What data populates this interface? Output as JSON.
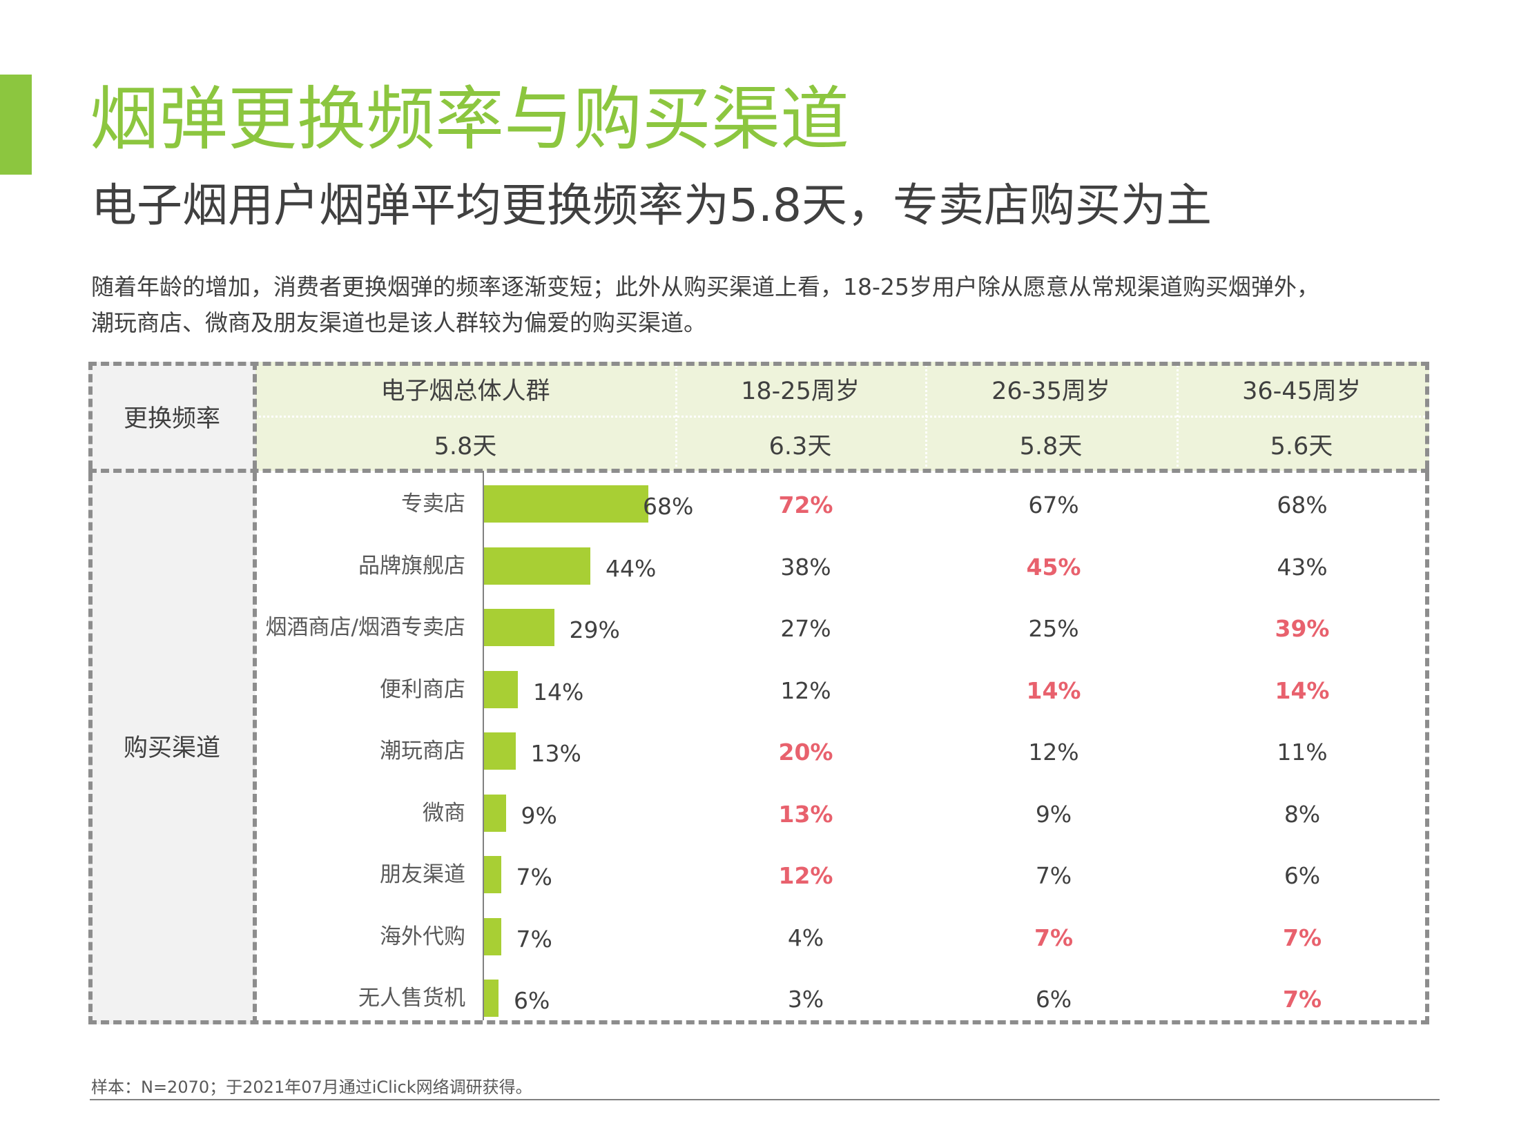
{
  "title": "烟弹更换频率与购买渠道",
  "subtitle": "电子烟用户烟弹平均更换频率为5.8天，专卖店购买为主",
  "description": [
    "随着年龄的增加，消费者更换烟弹的频率逐渐变短；此外从购买渠道上看，18-25岁用户除从愿意从常规渠道购买烟弹外，",
    "潮玩商店、微商及朋友渠道也是该人群较为偏爱的购买渠道。"
  ],
  "table": {
    "frequency_label": "更换频率",
    "channel_label": "购买渠道",
    "columns": [
      "电子烟总体人群",
      "18-25周岁",
      "26-35周岁",
      "36-45周岁"
    ],
    "frequencies": [
      "5.8天",
      "6.3天",
      "5.8天",
      "5.6天"
    ],
    "rows": [
      {
        "label": "专卖店",
        "overall": 68,
        "overall_label": "68%",
        "ages": [
          "72%",
          "67%",
          "68%"
        ],
        "highlight": [
          true,
          false,
          false
        ]
      },
      {
        "label": "品牌旗舰店",
        "overall": 44,
        "overall_label": "44%",
        "ages": [
          "38%",
          "45%",
          "43%"
        ],
        "highlight": [
          false,
          true,
          false
        ]
      },
      {
        "label": "烟酒商店/烟酒专卖店",
        "overall": 29,
        "overall_label": "29%",
        "ages": [
          "27%",
          "25%",
          "39%"
        ],
        "highlight": [
          false,
          false,
          true
        ]
      },
      {
        "label": "便利商店",
        "overall": 14,
        "overall_label": "14%",
        "ages": [
          "12%",
          "14%",
          "14%"
        ],
        "highlight": [
          false,
          true,
          true
        ]
      },
      {
        "label": "潮玩商店",
        "overall": 13,
        "overall_label": "13%",
        "ages": [
          "20%",
          "12%",
          "11%"
        ],
        "highlight": [
          true,
          false,
          false
        ]
      },
      {
        "label": "微商",
        "overall": 9,
        "overall_label": "9%",
        "ages": [
          "13%",
          "9%",
          "8%"
        ],
        "highlight": [
          true,
          false,
          false
        ]
      },
      {
        "label": "朋友渠道",
        "overall": 7,
        "overall_label": "7%",
        "ages": [
          "12%",
          "7%",
          "6%"
        ],
        "highlight": [
          true,
          false,
          false
        ]
      },
      {
        "label": "海外代购",
        "overall": 7,
        "overall_label": "7%",
        "ages": [
          "4%",
          "7%",
          "7%"
        ],
        "highlight": [
          false,
          true,
          true
        ]
      },
      {
        "label": "无人售货机",
        "overall": 6,
        "overall_label": "6%",
        "ages": [
          "3%",
          "6%",
          "7%"
        ],
        "highlight": [
          false,
          false,
          true
        ]
      }
    ]
  },
  "footnote": "样本：N=2070；于2021年07月通过iClick网络调研获得。",
  "colors": {
    "accent": "#8cc63f",
    "bar": "#a8cf34",
    "highlight": "#e8616d",
    "header_bg": "#eef3db",
    "side_bg": "#f2f2f2"
  }
}
